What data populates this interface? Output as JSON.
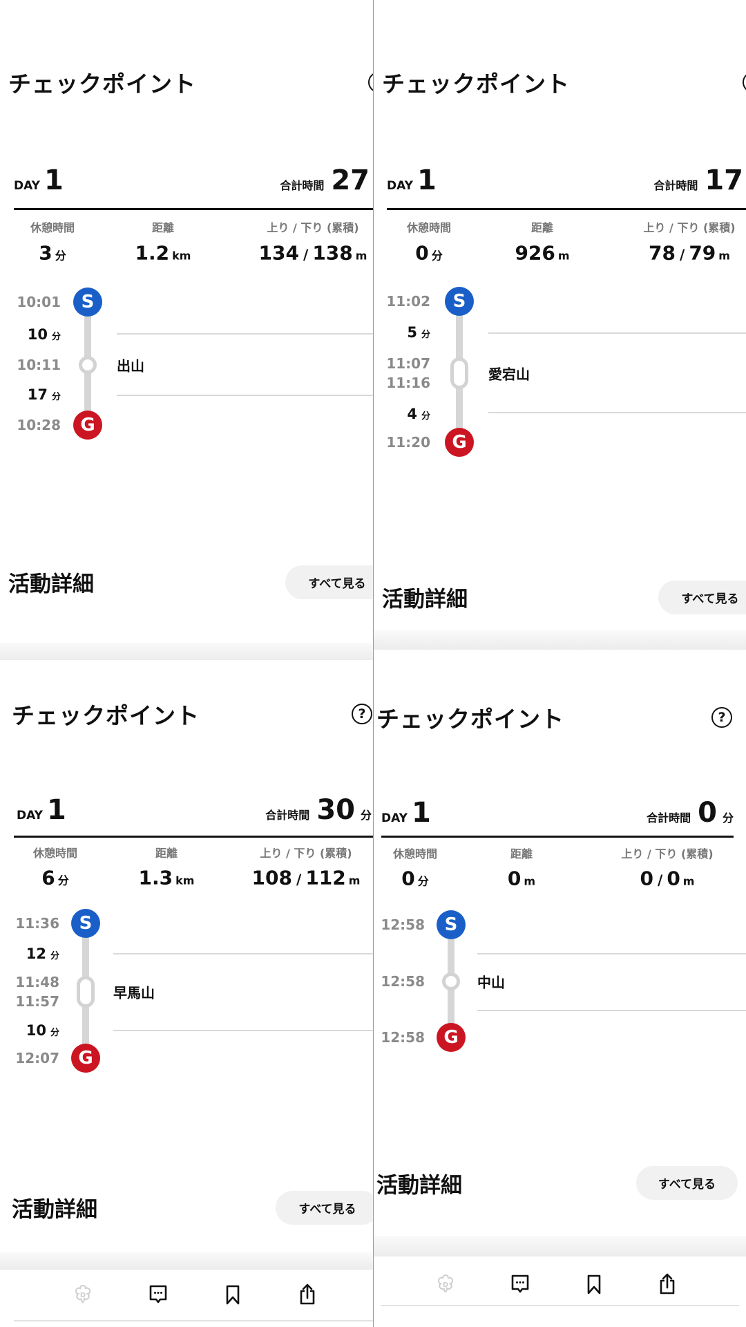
{
  "panels": [
    {
      "title": "チェックポイント",
      "help_icon": "question-circle-icon",
      "day_label": "DAY",
      "day_number": "1",
      "total_label": "合計時間",
      "total_value": "27",
      "total_unit": "",
      "stats": {
        "rest": {
          "label": "休憩時間",
          "value": "3",
          "unit": "分"
        },
        "distance": {
          "label": "距離",
          "value": "1.2",
          "unit": "km"
        },
        "elevation": {
          "label": "上り / 下り (累積)",
          "up": "134",
          "sep": "/",
          "down": "138",
          "unit": "m"
        }
      },
      "timeline": [
        {
          "type": "start",
          "badge": "S",
          "time": "10:01"
        },
        {
          "type": "duration",
          "value": "10",
          "unit": "分"
        },
        {
          "type": "checkpoint",
          "name": "出山",
          "times": [
            "10:11"
          ]
        },
        {
          "type": "duration",
          "value": "17",
          "unit": "分"
        },
        {
          "type": "goal",
          "badge": "G",
          "time": "10:28"
        }
      ],
      "activity_title": "活動詳細",
      "see_all": "すべて見る"
    },
    {
      "title": "チェックポイント",
      "help_icon": "question-circle-icon",
      "day_label": "DAY",
      "day_number": "1",
      "total_label": "合計時間",
      "total_value": "17",
      "total_unit": "",
      "stats": {
        "rest": {
          "label": "休憩時間",
          "value": "0",
          "unit": "分"
        },
        "distance": {
          "label": "距離",
          "value": "926",
          "unit": "m"
        },
        "elevation": {
          "label": "上り / 下り (累積)",
          "up": "78",
          "sep": "/",
          "down": "79",
          "unit": "m"
        }
      },
      "timeline": [
        {
          "type": "start",
          "badge": "S",
          "time": "11:02"
        },
        {
          "type": "duration",
          "value": "5",
          "unit": "分"
        },
        {
          "type": "checkpoint",
          "name": "愛宕山",
          "times": [
            "11:07",
            "11:16"
          ]
        },
        {
          "type": "duration",
          "value": "4",
          "unit": "分"
        },
        {
          "type": "goal",
          "badge": "G",
          "time": "11:20"
        }
      ],
      "activity_title": "活動詳細",
      "see_all": "すべて見る"
    },
    {
      "title": "チェックポイント",
      "help_icon": "question-circle-icon",
      "day_label": "DAY",
      "day_number": "1",
      "total_label": "合計時間",
      "total_value": "30",
      "total_unit": "分",
      "stats": {
        "rest": {
          "label": "休憩時間",
          "value": "6",
          "unit": "分"
        },
        "distance": {
          "label": "距離",
          "value": "1.3",
          "unit": "km"
        },
        "elevation": {
          "label": "上り / 下り (累積)",
          "up": "108",
          "sep": "/",
          "down": "112",
          "unit": "m"
        }
      },
      "timeline": [
        {
          "type": "start",
          "badge": "S",
          "time": "11:36"
        },
        {
          "type": "duration",
          "value": "12",
          "unit": "分"
        },
        {
          "type": "checkpoint",
          "name": "早馬山",
          "times": [
            "11:48",
            "11:57"
          ]
        },
        {
          "type": "duration",
          "value": "10",
          "unit": "分"
        },
        {
          "type": "goal",
          "badge": "G",
          "time": "12:07"
        }
      ],
      "activity_title": "活動詳細",
      "see_all": "すべて見る",
      "toolbar": [
        "yamap-logo-icon",
        "comment-icon",
        "bookmark-icon",
        "share-icon"
      ]
    },
    {
      "title": "チェックポイント",
      "help_icon": "question-circle-icon",
      "day_label": "DAY",
      "day_number": "1",
      "total_label": "合計時間",
      "total_value": "0",
      "total_unit": "分",
      "stats": {
        "rest": {
          "label": "休憩時間",
          "value": "0",
          "unit": "分"
        },
        "distance": {
          "label": "距離",
          "value": "0",
          "unit": "m"
        },
        "elevation": {
          "label": "上り / 下り (累積)",
          "up": "0",
          "sep": "/",
          "down": "0",
          "unit": "m"
        }
      },
      "timeline": [
        {
          "type": "start",
          "badge": "S",
          "time": "12:58"
        },
        {
          "type": "checkpoint",
          "name": "中山",
          "times": [
            "12:58"
          ]
        },
        {
          "type": "goal",
          "badge": "G",
          "time": "12:58"
        }
      ],
      "activity_title": "活動詳細",
      "see_all": "すべて見る",
      "toolbar": [
        "yamap-logo-icon",
        "comment-icon",
        "bookmark-icon",
        "share-icon"
      ]
    }
  ],
  "colors": {
    "start": "#1a5fc8",
    "goal": "#cc1522",
    "track": "#d6d6d6"
  }
}
